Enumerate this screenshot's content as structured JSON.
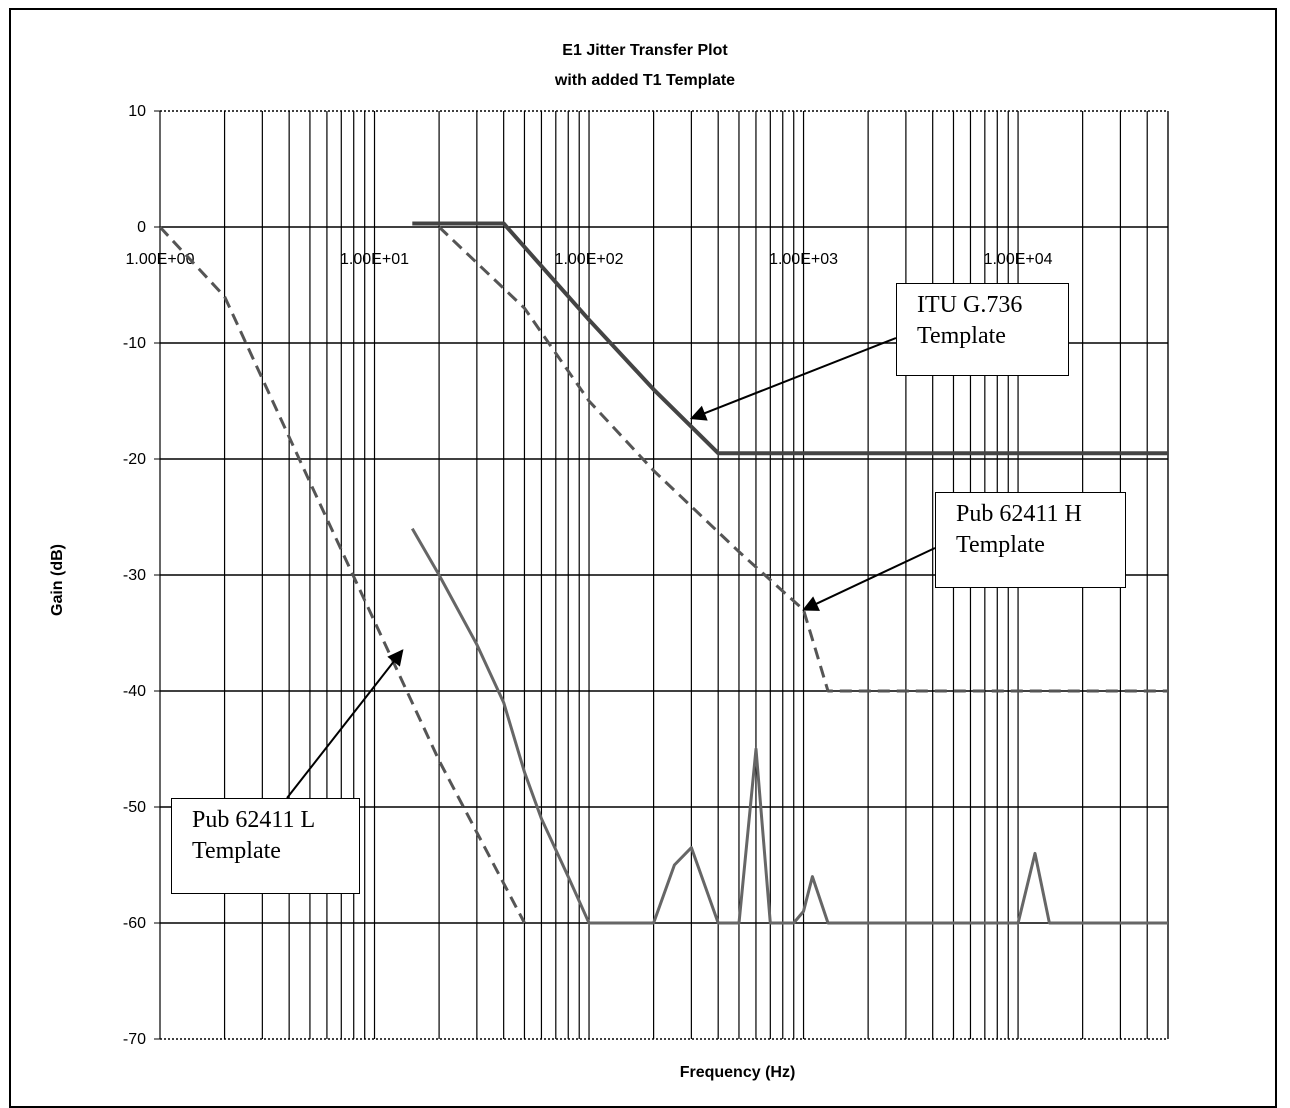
{
  "chart_data": {
    "type": "line",
    "title": "E1 Jitter Transfer Plot",
    "subtitle": "with added T1 Template",
    "xlabel": "Frequency (Hz)",
    "ylabel": "Gain (dB)",
    "x_scale": "log",
    "xlim": [
      1,
      50000
    ],
    "ylim": [
      -70,
      10
    ],
    "y_ticks": [
      10,
      0,
      -10,
      -20,
      -30,
      -40,
      -50,
      -60,
      -70
    ],
    "x_tick_labels": [
      {
        "value": 1,
        "label": "1.00E+00"
      },
      {
        "value": 10,
        "label": "1.00E+01"
      },
      {
        "value": 100,
        "label": "1.00E+02"
      },
      {
        "value": 1000,
        "label": "1.00E+03"
      },
      {
        "value": 10000,
        "label": "1.00E+04"
      }
    ],
    "grid": true,
    "series": [
      {
        "id": "l-template",
        "style": "dashed",
        "x": [
          1,
          2,
          5,
          10,
          20,
          50
        ],
        "y": [
          0,
          -6,
          -22,
          -34,
          -46,
          -60
        ]
      },
      {
        "id": "h-template",
        "style": "dashed",
        "x": [
          20,
          50,
          100,
          200,
          500,
          1000,
          1300,
          50000
        ],
        "y": [
          0,
          -7,
          -15,
          -21,
          -28,
          -33,
          -40,
          -40
        ]
      },
      {
        "id": "itu-template",
        "style": "solid-thick",
        "x": [
          15,
          40,
          100,
          200,
          400,
          50000
        ],
        "y": [
          0.3,
          0.3,
          -8,
          -14,
          -19.5,
          -19.5
        ]
      },
      {
        "id": "measured",
        "style": "solid",
        "x": [
          15,
          20,
          30,
          40,
          50,
          60,
          80,
          100,
          120,
          200,
          250,
          300,
          400,
          500,
          600,
          700,
          800,
          900,
          1000,
          1100,
          1300,
          2000,
          5000,
          10000,
          12000,
          14000,
          20000,
          50000
        ],
        "y": [
          -26,
          -30,
          -36,
          -41,
          -47,
          -51,
          -56,
          -60,
          -60,
          -60,
          -55,
          -53.5,
          -60,
          -60,
          -45,
          -60,
          -60,
          -60,
          -59,
          -56,
          -60,
          -60,
          -60,
          -60,
          -54,
          -60,
          -60,
          -60
        ]
      }
    ]
  },
  "annotations": [
    {
      "id": "itu",
      "text": "ITU G.736\nTemplate"
    },
    {
      "id": "pubh",
      "text": "Pub 62411 H\nTemplate"
    },
    {
      "id": "publ",
      "text": "Pub 62411 L\nTemplate"
    }
  ]
}
